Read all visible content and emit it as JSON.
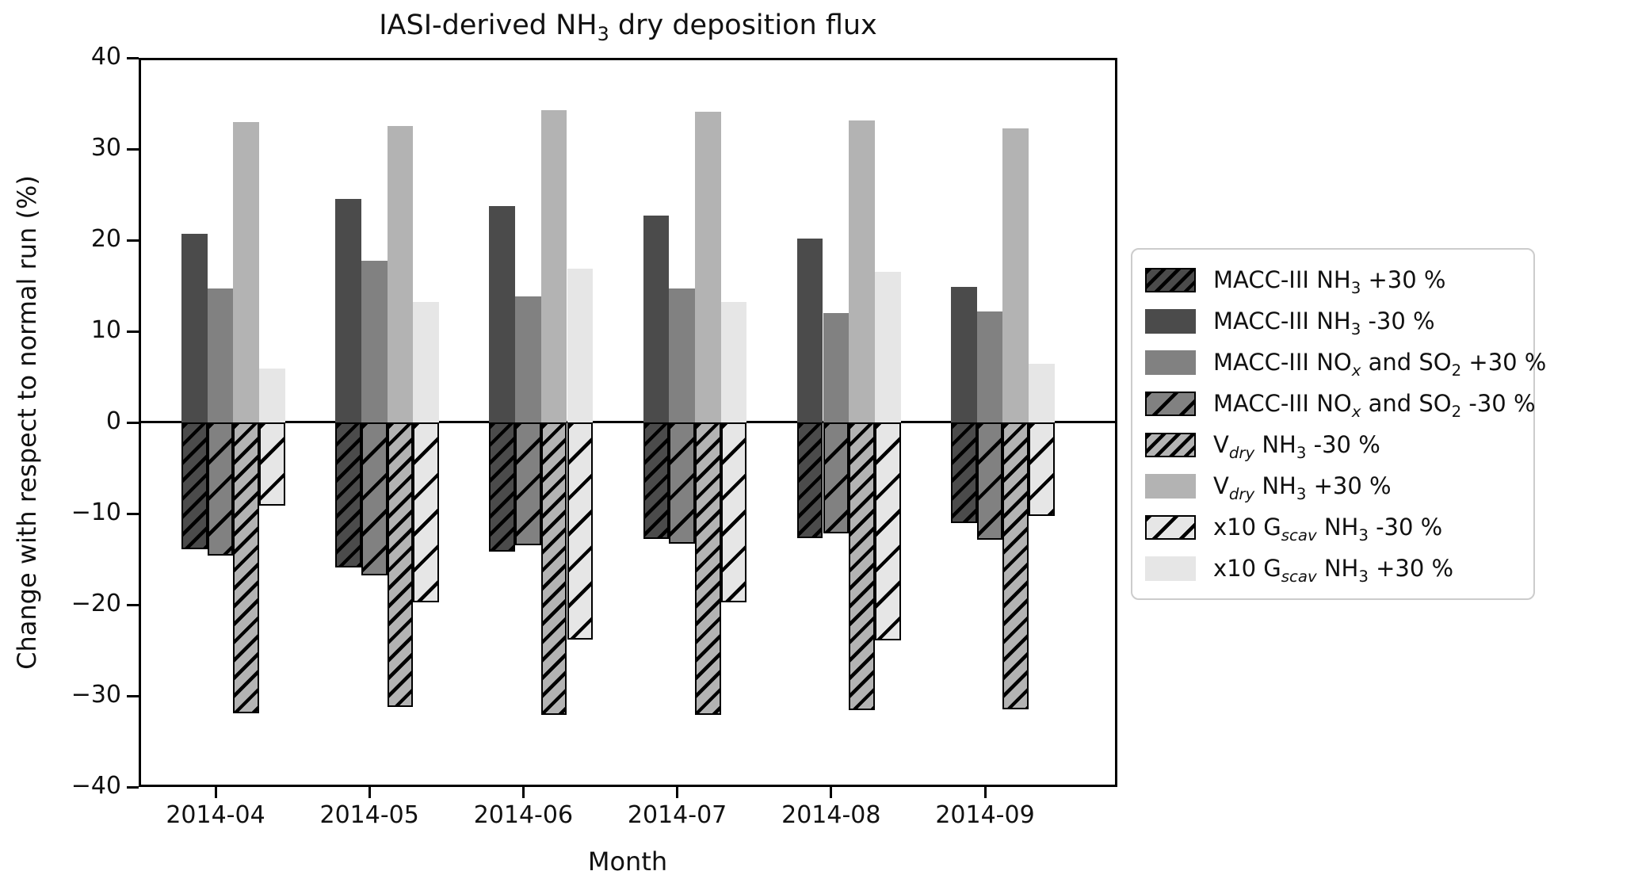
{
  "figure": {
    "title": "IASI-derived NH_{3} dry deposition flux",
    "xlabel": "Month",
    "ylabel": "Change with respect to normal run (%)"
  },
  "axis": {
    "ytick_labels": [
      "40",
      "30",
      "20",
      "10",
      "0",
      "−10",
      "−20",
      "−30",
      "−40"
    ],
    "axis_color": "#000000",
    "legend_border_color": "#cccccc"
  },
  "chart_data": {
    "type": "bar",
    "title": "IASI-derived NH_{3} dry deposition flux",
    "xlabel": "Month",
    "ylabel": "Change with respect to normal run (%)",
    "ylim": [
      -40,
      40
    ],
    "yticks": [
      40,
      30,
      20,
      10,
      0,
      -10,
      -20,
      -30,
      -40
    ],
    "grid": false,
    "legend_position": "right",
    "categories": [
      "2014-04",
      "2014-05",
      "2014-06",
      "2014-07",
      "2014-08",
      "2014-09"
    ],
    "series": [
      {
        "name": "MACC-III NH_{3} +30 %",
        "slot": 0,
        "color": "#4b4b4b",
        "hatch": "dense",
        "values": [
          -13.9,
          -15.9,
          -14.2,
          -12.8,
          -12.7,
          -11.0
        ]
      },
      {
        "name": "MACC-III NH_{3} -30 %",
        "slot": 0,
        "color": "#4b4b4b",
        "hatch": "none",
        "values": [
          20.7,
          24.5,
          23.7,
          22.7,
          20.2,
          14.9
        ]
      },
      {
        "name": "MACC-III NO_{x} and SO_{2} +30 %",
        "slot": 1,
        "color": "#818181",
        "hatch": "none",
        "values": [
          14.7,
          17.7,
          13.8,
          14.7,
          12.0,
          12.2
        ]
      },
      {
        "name": "MACC-III NO_{x} and SO_{2} -30 %",
        "slot": 1,
        "color": "#818181",
        "hatch": "sparse",
        "values": [
          -14.6,
          -16.8,
          -13.5,
          -13.3,
          -12.2,
          -12.9
        ]
      },
      {
        "name": "V_{dry} NH_{3} -30 %",
        "slot": 2,
        "color": "#b3b3b3",
        "hatch": "dense",
        "values": [
          -31.9,
          -31.2,
          -32.1,
          -32.1,
          -31.6,
          -31.5
        ]
      },
      {
        "name": "V_{dry} NH_{3} +30 %",
        "slot": 2,
        "color": "#b3b3b3",
        "hatch": "none",
        "values": [
          33.0,
          32.5,
          34.3,
          34.1,
          33.1,
          32.3
        ]
      },
      {
        "name": "x10 G_{scav} NH_{3} -30 %",
        "slot": 3,
        "color": "#e6e6e6",
        "hatch": "sparse",
        "values": [
          -9.1,
          -19.7,
          -23.8,
          -19.7,
          -23.9,
          -10.3
        ]
      },
      {
        "name": "x10 G_{scav} NH_{3} +30 %",
        "slot": 3,
        "color": "#e6e6e6",
        "hatch": "none",
        "values": [
          5.9,
          13.2,
          16.9,
          13.2,
          16.5,
          6.4
        ]
      }
    ]
  }
}
